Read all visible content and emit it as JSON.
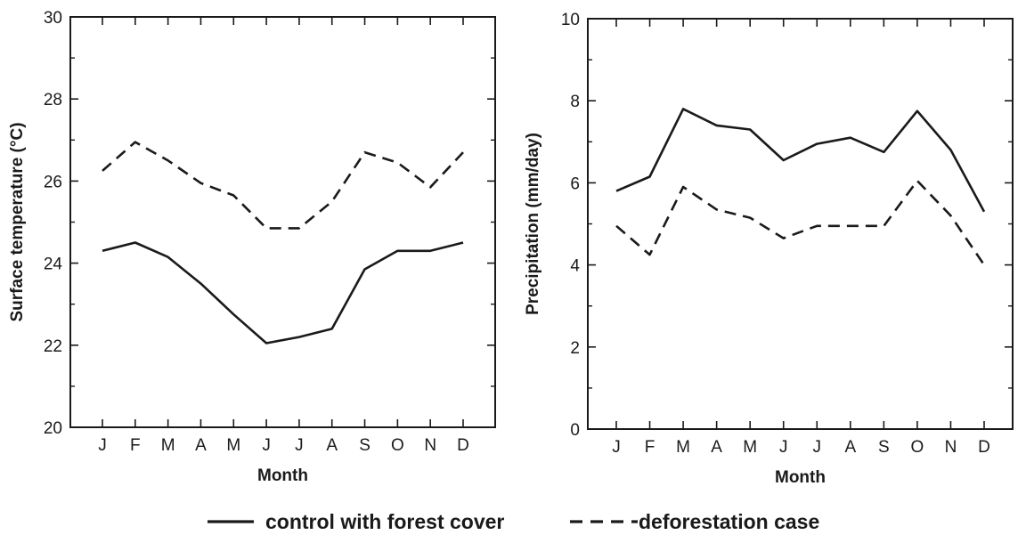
{
  "chart_data": [
    {
      "type": "line",
      "xlabel": "Month",
      "ylabel": "Surface temperature (°C)",
      "categories": [
        "J",
        "F",
        "M",
        "A",
        "M",
        "J",
        "J",
        "A",
        "S",
        "O",
        "N",
        "D"
      ],
      "ylim": [
        20,
        30
      ],
      "yticks": [
        20,
        22,
        24,
        26,
        28,
        30
      ],
      "yminor": [
        21,
        23,
        25,
        27,
        29
      ],
      "series": [
        {
          "name": "control with forest cover",
          "style": "solid",
          "values": [
            24.3,
            24.5,
            24.15,
            23.5,
            22.75,
            22.05,
            22.2,
            22.4,
            23.85,
            24.3,
            24.3,
            24.5
          ]
        },
        {
          "name": "deforestation case",
          "style": "dashed",
          "values": [
            26.25,
            26.95,
            26.5,
            25.95,
            25.65,
            24.85,
            24.85,
            25.5,
            26.7,
            26.45,
            25.85,
            26.7
          ]
        }
      ]
    },
    {
      "type": "line",
      "xlabel": "Month",
      "ylabel": "Precipitation (mm/day)",
      "categories": [
        "J",
        "F",
        "M",
        "A",
        "M",
        "J",
        "J",
        "A",
        "S",
        "O",
        "N",
        "D"
      ],
      "ylim": [
        0,
        10
      ],
      "yticks": [
        0,
        2,
        4,
        6,
        8,
        10
      ],
      "yminor": [
        1,
        3,
        5,
        7,
        9
      ],
      "series": [
        {
          "name": "control with forest cover",
          "style": "solid",
          "values": [
            5.8,
            6.15,
            7.8,
            7.4,
            7.3,
            6.55,
            6.95,
            7.1,
            6.75,
            7.75,
            6.8,
            5.3
          ]
        },
        {
          "name": "deforestation case",
          "style": "dashed",
          "values": [
            4.95,
            4.25,
            5.9,
            5.35,
            5.15,
            4.65,
            4.95,
            4.95,
            4.95,
            6.05,
            5.2,
            4.0
          ]
        }
      ]
    }
  ],
  "legend": {
    "solid_label": "control with forest cover",
    "dashed_label": "deforestation case"
  },
  "colors": {
    "line": "#1a1a1a",
    "background": "#ffffff"
  }
}
